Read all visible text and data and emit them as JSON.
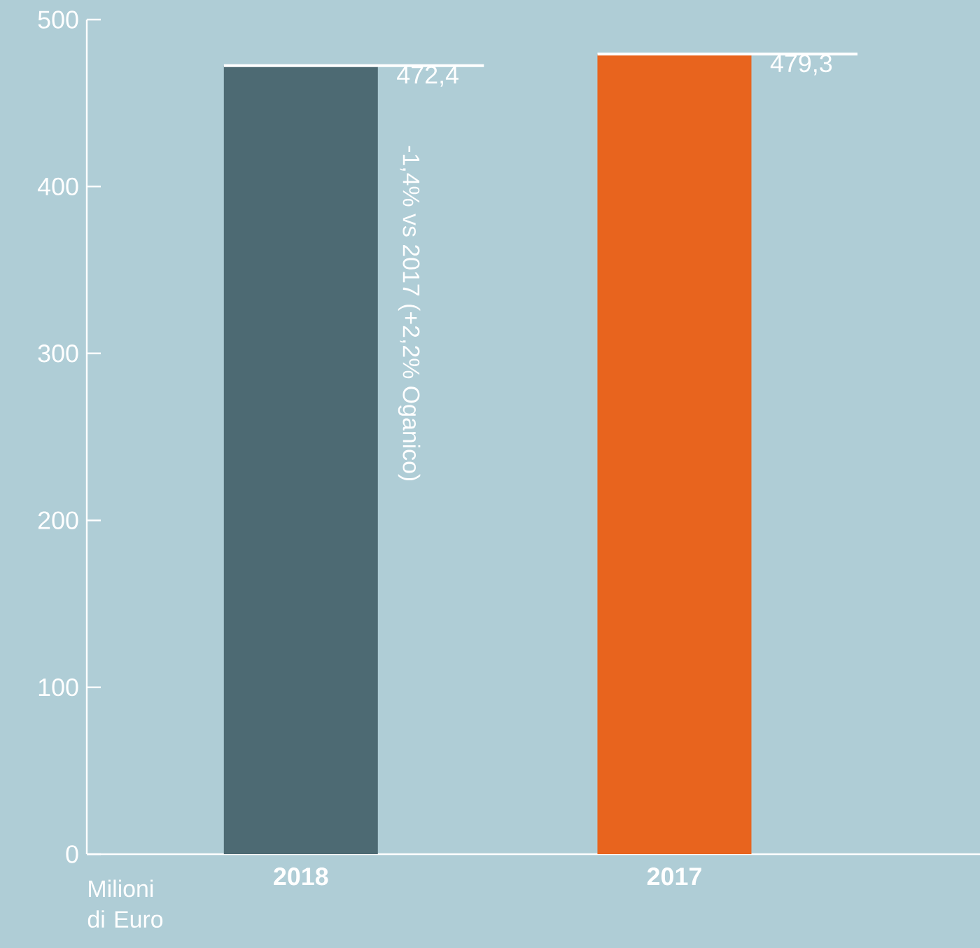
{
  "chart_data": {
    "type": "bar",
    "categories": [
      "2018",
      "2017"
    ],
    "values": [
      472.4,
      479.3
    ],
    "colors": [
      "#4d6a73",
      "#e8641e"
    ],
    "value_labels": [
      "472,4",
      "479,3"
    ],
    "ylim": [
      0,
      500
    ],
    "yticks": [
      0,
      100,
      200,
      300,
      400,
      500
    ],
    "annotations": [
      "-1,4% vs 2017 (+2,2% Oganico)",
      "Milioni di Euro"
    ],
    "grid": false
  }
}
